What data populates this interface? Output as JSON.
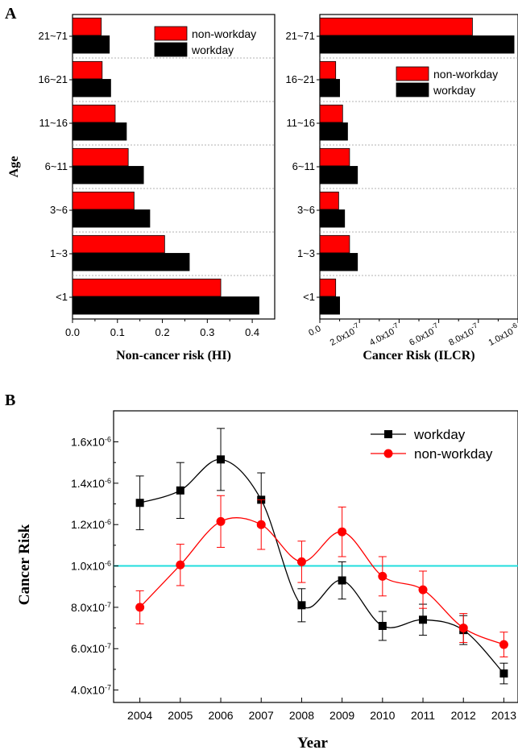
{
  "figure": {
    "panel_a_letter": "A",
    "panel_b_letter": "B"
  },
  "chart_data": [
    {
      "type": "bar",
      "orientation": "horizontal",
      "ylabel": "Age",
      "xlabel": "Non-cancer risk (HI)",
      "categories": [
        "<1",
        "1~3",
        "3~6",
        "6~11",
        "11~16",
        "16~21",
        "21~71"
      ],
      "series": [
        {
          "name": "non-workday",
          "color": "#ff0000",
          "values": [
            0.33,
            0.205,
            0.137,
            0.124,
            0.095,
            0.066,
            0.064
          ]
        },
        {
          "name": "workday",
          "color": "#000000",
          "values": [
            0.415,
            0.26,
            0.172,
            0.158,
            0.12,
            0.085,
            0.082
          ]
        }
      ],
      "xlim": [
        0,
        0.45
      ],
      "xticks": [
        0.0,
        0.1,
        0.2,
        0.3,
        0.4
      ],
      "xtick_labels": [
        "0.0",
        "0.1",
        "0.2",
        "0.3",
        "0.4"
      ],
      "legend": "top-right",
      "grid": "dashed separators between age groups"
    },
    {
      "type": "bar",
      "orientation": "horizontal",
      "xlabel": "Cancer Risk (ILCR)",
      "categories": [
        "<1",
        "1~3",
        "3~6",
        "6~11",
        "11~16",
        "16~21",
        "21~71"
      ],
      "series": [
        {
          "name": "non-workday",
          "color": "#ff0000",
          "values": [
            8e-08,
            1.5e-07,
            9.5e-08,
            1.5e-07,
            1.15e-07,
            8e-08,
            7.7e-07
          ]
        },
        {
          "name": "workday",
          "color": "#000000",
          "values": [
            1e-07,
            1.9e-07,
            1.25e-07,
            1.9e-07,
            1.4e-07,
            1e-07,
            9.8e-07
          ]
        }
      ],
      "xlim": [
        0,
        1e-06
      ],
      "xticks": [
        0,
        2e-07,
        4e-07,
        6e-07,
        8e-07,
        1e-06
      ],
      "xtick_labels": [
        {
          "mant": "0.0",
          "exp": ""
        },
        {
          "mant": "2.0x10",
          "exp": "-7"
        },
        {
          "mant": "4.0x10",
          "exp": "-7"
        },
        {
          "mant": "6.0x10",
          "exp": "-7"
        },
        {
          "mant": "8.0x10",
          "exp": "-7"
        },
        {
          "mant": "1.0x10",
          "exp": "-6"
        }
      ],
      "legend": "top-right",
      "grid": "dashed separators between age groups"
    },
    {
      "type": "line",
      "xlabel": "Year",
      "ylabel": "Cancer Risk",
      "x": [
        2004,
        2005,
        2006,
        2007,
        2008,
        2009,
        2010,
        2011,
        2012,
        2013
      ],
      "series": [
        {
          "name": "workday",
          "color": "#000000",
          "marker": "square",
          "values": [
            1.305e-06,
            1.365e-06,
            1.515e-06,
            1.32e-06,
            8.1e-07,
            9.3e-07,
            7.1e-07,
            7.4e-07,
            6.9e-07,
            4.8e-07
          ],
          "errors": [
            1.3e-07,
            1.35e-07,
            1.5e-07,
            1.3e-07,
            8e-08,
            9e-08,
            7e-08,
            7.5e-08,
            7e-08,
            5e-08
          ]
        },
        {
          "name": "non-workday",
          "color": "#ff0000",
          "marker": "circle",
          "values": [
            8e-07,
            1.005e-06,
            1.215e-06,
            1.2e-06,
            1.02e-06,
            1.165e-06,
            9.5e-07,
            8.85e-07,
            7e-07,
            6.2e-07
          ],
          "errors": [
            8e-08,
            1e-07,
            1.25e-07,
            1.2e-07,
            1e-07,
            1.2e-07,
            9.5e-08,
            9e-08,
            7e-08,
            6e-08
          ]
        }
      ],
      "reference_line": {
        "y": 1e-06,
        "color": "#22dddd"
      },
      "ylim": [
        3.4e-07,
        1.75e-06
      ],
      "yticks": [
        4e-07,
        6e-07,
        8e-07,
        1e-06,
        1.2e-06,
        1.4e-06,
        1.6e-06
      ],
      "ytick_labels": [
        {
          "mant": "4.0x10",
          "exp": "-7"
        },
        {
          "mant": "6.0x10",
          "exp": "-7"
        },
        {
          "mant": "8.0x10",
          "exp": "-7"
        },
        {
          "mant": "1.0x10",
          "exp": "-6"
        },
        {
          "mant": "1.2x10",
          "exp": "-6"
        },
        {
          "mant": "1.4x10",
          "exp": "-6"
        },
        {
          "mant": "1.6x10",
          "exp": "-6"
        }
      ],
      "xlim": [
        2003.35,
        2013.35
      ],
      "legend": "top-right",
      "grid": false
    }
  ]
}
